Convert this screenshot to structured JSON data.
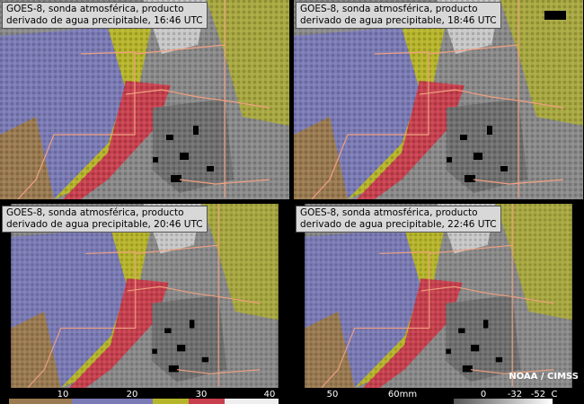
{
  "panels": [
    {
      "caption": [
        "GOES-8, sonda atmosférica, producto",
        "derivado de agua precipitable, 16:46 UTC"
      ]
    },
    {
      "caption": [
        "GOES-8, sonda atmosférica, producto",
        "derivado de agua precipitable, 18:46 UTC"
      ]
    },
    {
      "caption": [
        "GOES-8, sonda atmosférica, producto",
        "derivado de agua precipitable, 20:46 UTC"
      ]
    },
    {
      "caption": [
        "GOES-8, sonda atmosférica, producto",
        "derivado de agua precipitable, 22:46 UTC"
      ]
    }
  ],
  "credit": "NOAA / CIMSS",
  "colorbar": {
    "labels": [
      "10",
      "20",
      "30",
      "40",
      "50",
      "60mm",
      "0",
      "-32",
      "-52",
      "C"
    ]
  }
}
